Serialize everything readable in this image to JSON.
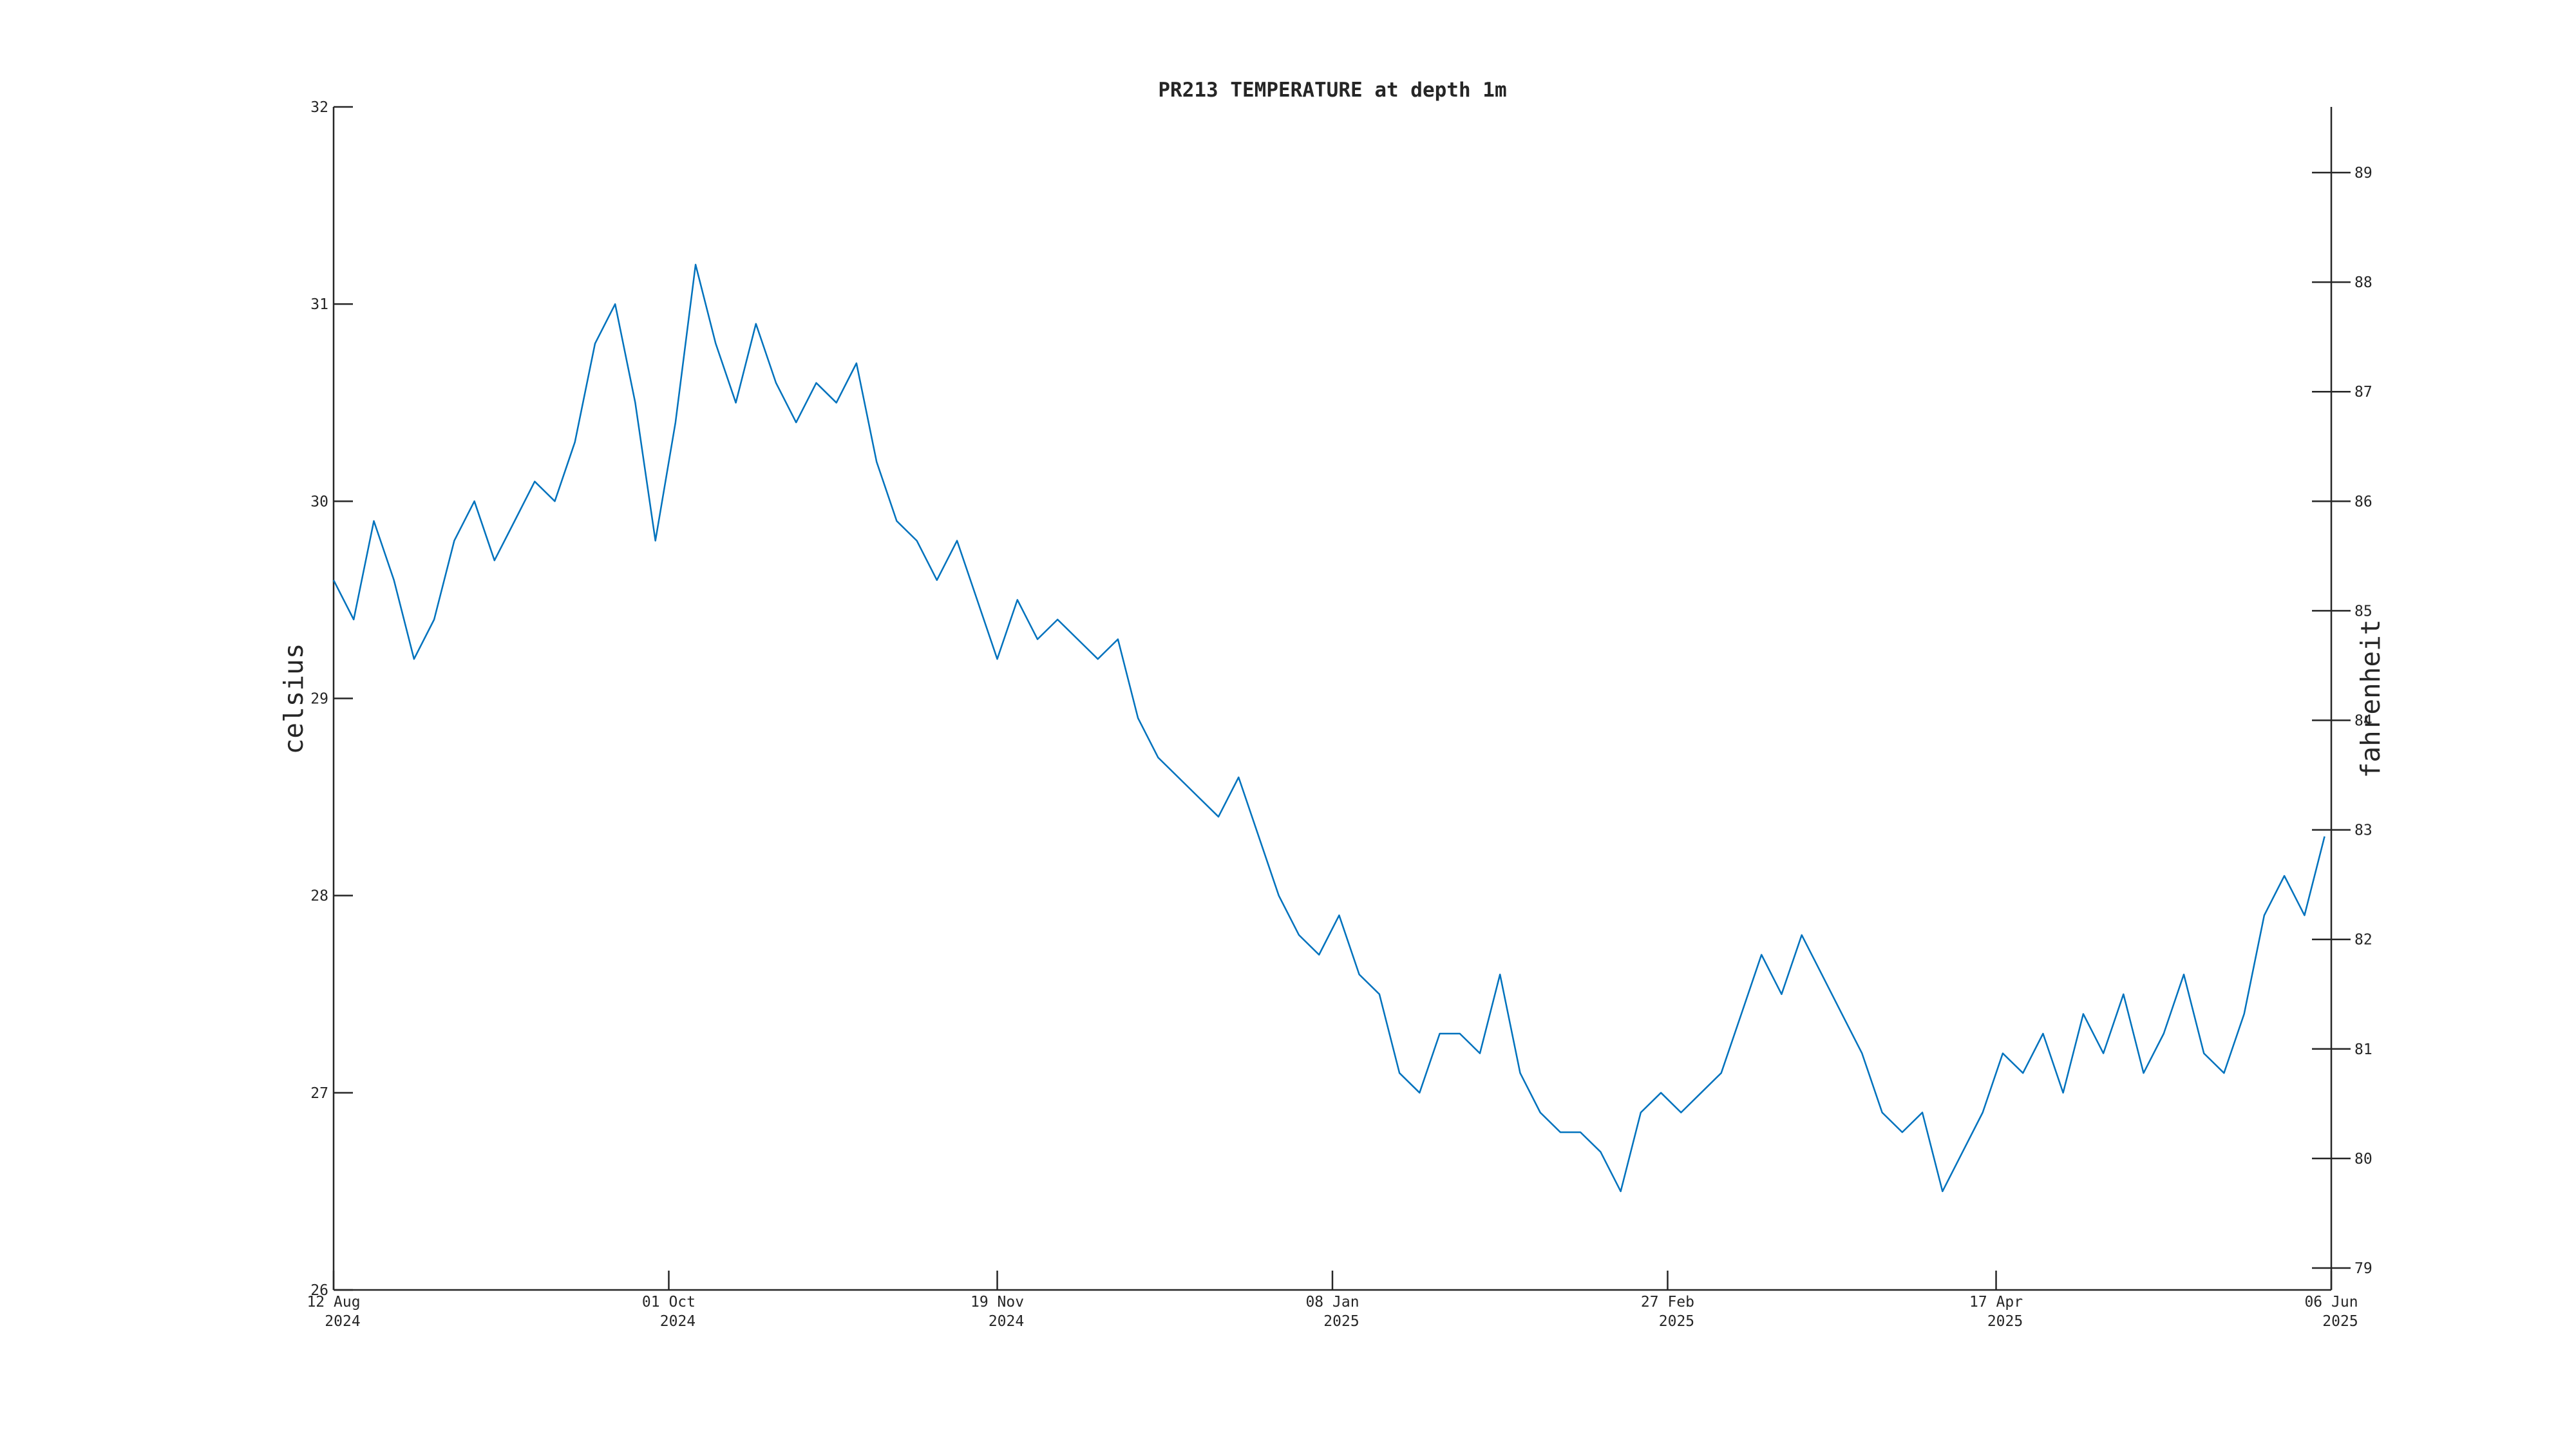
{
  "chart_data": {
    "type": "line",
    "title": "PR213 TEMPERATURE at depth 1m",
    "ylabel": "celsius",
    "y2label": "fahrenheit",
    "xlim": [
      "2024-08-12",
      "2025-06-06"
    ],
    "xticks": [
      {
        "value": "2024-08-12",
        "label": [
          "12 Aug",
          "2024"
        ]
      },
      {
        "value": "2024-10-01",
        "label": [
          "01 Oct",
          "2024"
        ]
      },
      {
        "value": "2024-11-19",
        "label": [
          "19 Nov",
          "2024"
        ]
      },
      {
        "value": "2025-01-08",
        "label": [
          "08 Jan",
          "2025"
        ]
      },
      {
        "value": "2025-02-27",
        "label": [
          "27 Feb",
          "2025"
        ]
      },
      {
        "value": "2025-04-17",
        "label": [
          "17 Apr",
          "2025"
        ]
      },
      {
        "value": "2025-06-06",
        "label": [
          "06 Jun",
          "2025"
        ]
      }
    ],
    "ylim": [
      26,
      32
    ],
    "yticks": [
      26,
      27,
      28,
      29,
      30,
      31,
      32
    ],
    "y2lim": [
      78.8,
      89.6
    ],
    "y2ticks": [
      79,
      80,
      81,
      82,
      83,
      84,
      85,
      86,
      87,
      88,
      89
    ],
    "x": [
      "2024-08-12",
      "2024-08-15",
      "2024-08-18",
      "2024-08-21",
      "2024-08-24",
      "2024-08-27",
      "2024-08-30",
      "2024-09-02",
      "2024-09-05",
      "2024-09-08",
      "2024-09-11",
      "2024-09-14",
      "2024-09-17",
      "2024-09-20",
      "2024-09-23",
      "2024-09-26",
      "2024-09-29",
      "2024-10-02",
      "2024-10-05",
      "2024-10-08",
      "2024-10-11",
      "2024-10-14",
      "2024-10-17",
      "2024-10-20",
      "2024-10-23",
      "2024-10-26",
      "2024-10-29",
      "2024-11-01",
      "2024-11-04",
      "2024-11-07",
      "2024-11-10",
      "2024-11-13",
      "2024-11-16",
      "2024-11-19",
      "2024-11-22",
      "2024-11-25",
      "2024-11-28",
      "2024-12-01",
      "2024-12-04",
      "2024-12-07",
      "2024-12-10",
      "2024-12-13",
      "2024-12-16",
      "2024-12-19",
      "2024-12-22",
      "2024-12-25",
      "2024-12-28",
      "2024-12-31",
      "2025-01-03",
      "2025-01-06",
      "2025-01-09",
      "2025-01-12",
      "2025-01-15",
      "2025-01-18",
      "2025-01-21",
      "2025-01-24",
      "2025-01-27",
      "2025-01-30",
      "2025-02-02",
      "2025-02-05",
      "2025-02-08",
      "2025-02-11",
      "2025-02-14",
      "2025-02-17",
      "2025-02-20",
      "2025-02-23",
      "2025-02-26",
      "2025-03-01",
      "2025-03-04",
      "2025-03-07",
      "2025-03-10",
      "2025-03-13",
      "2025-03-16",
      "2025-03-19",
      "2025-03-22",
      "2025-03-25",
      "2025-03-28",
      "2025-03-31",
      "2025-04-03",
      "2025-04-06",
      "2025-04-09",
      "2025-04-12",
      "2025-04-15",
      "2025-04-18",
      "2025-04-21",
      "2025-04-24",
      "2025-04-27",
      "2025-04-30",
      "2025-05-03",
      "2025-05-06",
      "2025-05-09",
      "2025-05-12",
      "2025-05-15",
      "2025-05-18",
      "2025-05-21",
      "2025-05-24",
      "2025-05-27",
      "2025-05-30",
      "2025-06-02",
      "2025-06-05"
    ],
    "series": [
      {
        "name": "temperature",
        "color": "#0072bd",
        "values": [
          29.6,
          29.4,
          29.9,
          29.6,
          29.2,
          29.4,
          29.8,
          30.0,
          29.7,
          29.9,
          30.1,
          30.0,
          30.3,
          30.8,
          31.0,
          30.5,
          29.8,
          30.4,
          31.2,
          30.8,
          30.5,
          30.9,
          30.6,
          30.4,
          30.6,
          30.5,
          30.7,
          30.2,
          29.9,
          29.8,
          29.6,
          29.8,
          29.5,
          29.2,
          29.5,
          29.3,
          29.4,
          29.3,
          29.2,
          29.3,
          28.9,
          28.7,
          28.6,
          28.5,
          28.4,
          28.6,
          28.3,
          28.0,
          27.8,
          27.7,
          27.9,
          27.6,
          27.5,
          27.1,
          27.0,
          27.3,
          27.3,
          27.2,
          27.6,
          27.1,
          26.9,
          26.8,
          26.8,
          26.7,
          26.5,
          26.9,
          27.0,
          26.9,
          27.0,
          27.1,
          27.4,
          27.7,
          27.5,
          27.8,
          27.6,
          27.4,
          27.2,
          26.9,
          26.8,
          26.9,
          26.5,
          26.7,
          26.9,
          27.2,
          27.1,
          27.3,
          27.0,
          27.4,
          27.2,
          27.5,
          27.1,
          27.3,
          27.6,
          27.2,
          27.1,
          27.4,
          27.9,
          28.1,
          27.9,
          28.3
        ]
      }
    ]
  }
}
